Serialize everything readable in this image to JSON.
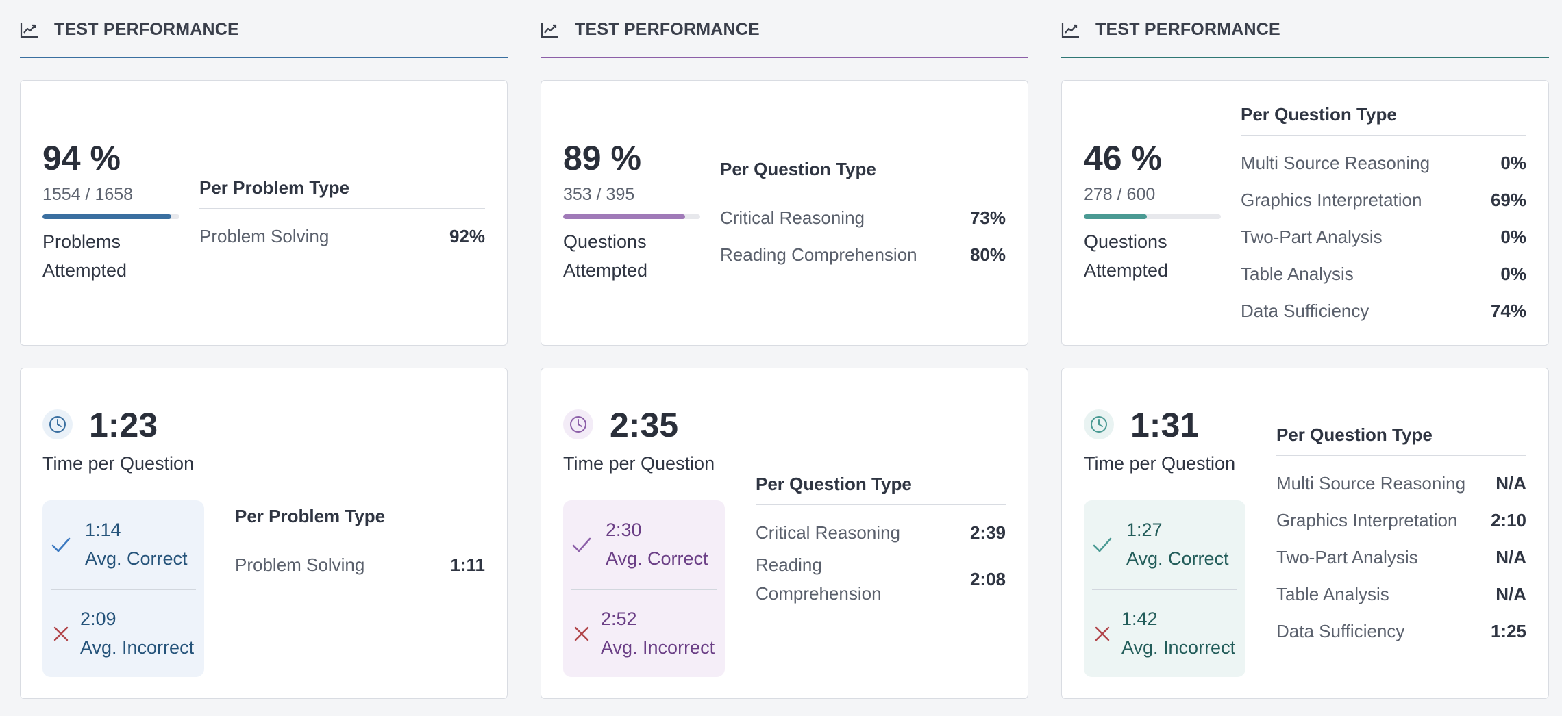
{
  "colors": {
    "blue": "#3a6fa0",
    "purple": "#8c5fa8",
    "teal": "#2f7775",
    "correct_mark_blue": "#3a78c0",
    "incorrect_mark": "#b1454a"
  },
  "columns": [
    {
      "header": {
        "icon": "chart-line-icon",
        "title": "TEST PERFORMANCE"
      },
      "performance": {
        "percent": "94 %",
        "ratio": "1554 / 1658",
        "progress_fraction": 0.94,
        "attempted_label": "Problems Attempted",
        "table_title": "Per Problem Type",
        "rows": [
          {
            "label": "Problem Solving",
            "value": "92%"
          }
        ]
      },
      "time": {
        "icon": "clock-icon",
        "value": "1:23",
        "label": "Time per Question",
        "avg_correct_value": "1:14",
        "avg_correct_label": "Avg. Correct",
        "avg_incorrect_value": "2:09",
        "avg_incorrect_label": "Avg. Incorrect",
        "table_title": "Per Problem Type",
        "rows": [
          {
            "label": "Problem Solving",
            "value": "1:11"
          }
        ]
      }
    },
    {
      "header": {
        "icon": "chart-line-icon",
        "title": "TEST PERFORMANCE"
      },
      "performance": {
        "percent": "89 %",
        "ratio": "353 / 395",
        "progress_fraction": 0.89,
        "attempted_label": "Questions Attempted",
        "table_title": "Per Question Type",
        "rows": [
          {
            "label": "Critical Reasoning",
            "value": "73%"
          },
          {
            "label": "Reading Comprehension",
            "value": "80%"
          }
        ]
      },
      "time": {
        "icon": "clock-icon",
        "value": "2:35",
        "label": "Time per Question",
        "avg_correct_value": "2:30",
        "avg_correct_label": "Avg. Correct",
        "avg_incorrect_value": "2:52",
        "avg_incorrect_label": "Avg. Incorrect",
        "table_title": "Per Question Type",
        "rows": [
          {
            "label": "Critical Reasoning",
            "value": "2:39"
          },
          {
            "label": "Reading Comprehension",
            "value": "2:08"
          }
        ]
      }
    },
    {
      "header": {
        "icon": "chart-line-icon",
        "title": "TEST PERFORMANCE"
      },
      "performance": {
        "percent": "46 %",
        "ratio": "278 / 600",
        "progress_fraction": 0.46,
        "attempted_label": "Questions Attempted",
        "table_title": "Per Question Type",
        "rows": [
          {
            "label": "Multi Source Reasoning",
            "value": "0%"
          },
          {
            "label": "Graphics Interpretation",
            "value": "69%"
          },
          {
            "label": "Two-Part Analysis",
            "value": "0%"
          },
          {
            "label": "Table Analysis",
            "value": "0%"
          },
          {
            "label": "Data Sufficiency",
            "value": "74%"
          }
        ]
      },
      "time": {
        "icon": "clock-icon",
        "value": "1:31",
        "label": "Time per Question",
        "avg_correct_value": "1:27",
        "avg_correct_label": "Avg. Correct",
        "avg_incorrect_value": "1:42",
        "avg_incorrect_label": "Avg. Incorrect",
        "table_title": "Per Question Type",
        "rows": [
          {
            "label": "Multi Source Reasoning",
            "value": "N/A"
          },
          {
            "label": "Graphics Interpretation",
            "value": "2:10"
          },
          {
            "label": "Two-Part Analysis",
            "value": "N/A"
          },
          {
            "label": "Table Analysis",
            "value": "N/A"
          },
          {
            "label": "Data Sufficiency",
            "value": "1:25"
          }
        ]
      }
    }
  ]
}
